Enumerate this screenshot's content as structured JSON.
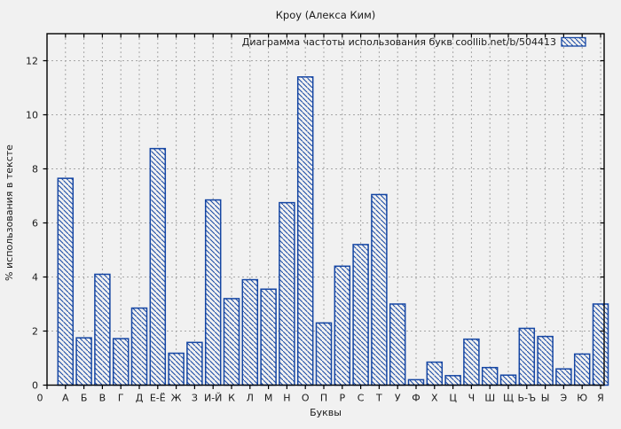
{
  "title": "Кроу (Алекса Ким)",
  "legend": {
    "label": "Диаграмма частоты использования букв  coollib.net/b/504413"
  },
  "axes": {
    "x_label": "Буквы",
    "y_label": "% использования в тексте",
    "x_zero_label": "0"
  },
  "colors": {
    "bar": "#1546a3",
    "background": "#f1f1f1",
    "grid": "#a6a6a6",
    "axis": "#000000",
    "text": "#1a1a1a"
  },
  "chart_data": {
    "type": "bar",
    "title": "Кроу (Алекса Ким)",
    "legend": "Диаграмма частоты использования букв  coollib.net/b/504413",
    "xlabel": "Буквы",
    "ylabel": "% использования в тексте",
    "ylim": [
      0,
      13
    ],
    "yticks": [
      0,
      2,
      4,
      6,
      8,
      10,
      12
    ],
    "grid": true,
    "legend_position": "top-right-inside",
    "bar_style": "diagonal-hatch",
    "categories": [
      "А",
      "Б",
      "В",
      "Г",
      "Д",
      "Е-Ё",
      "Ж",
      "З",
      "И-Й",
      "К",
      "Л",
      "М",
      "Н",
      "О",
      "П",
      "Р",
      "С",
      "Т",
      "У",
      "Ф",
      "Х",
      "Ц",
      "Ч",
      "Ш",
      "Щ",
      "Ь-Ъ",
      "Ы",
      "Э",
      "Ю",
      "Я"
    ],
    "values": [
      7.65,
      1.75,
      4.1,
      1.72,
      2.85,
      8.75,
      1.18,
      1.58,
      6.85,
      3.2,
      3.9,
      3.55,
      6.75,
      11.4,
      2.3,
      4.4,
      5.2,
      7.05,
      3.0,
      0.2,
      0.85,
      0.35,
      1.7,
      0.65,
      0.37,
      2.1,
      1.8,
      0.6,
      1.15,
      3.0
    ]
  }
}
